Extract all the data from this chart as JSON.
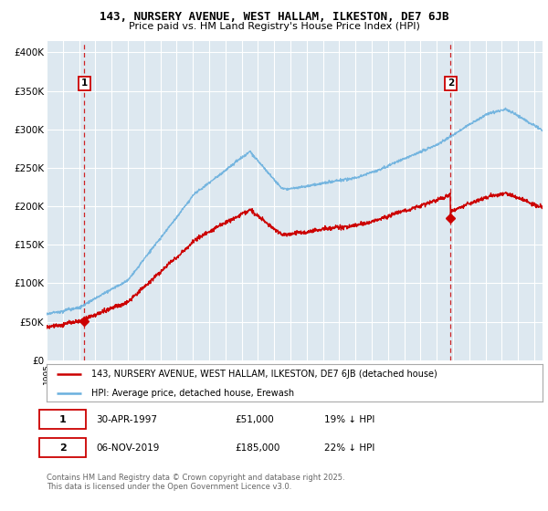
{
  "title": "143, NURSERY AVENUE, WEST HALLAM, ILKESTON, DE7 6JB",
  "subtitle": "Price paid vs. HM Land Registry's House Price Index (HPI)",
  "ylabel_ticks": [
    "£0",
    "£50K",
    "£100K",
    "£150K",
    "£200K",
    "£250K",
    "£300K",
    "£350K",
    "£400K"
  ],
  "ytick_values": [
    0,
    50000,
    100000,
    150000,
    200000,
    250000,
    300000,
    350000,
    400000
  ],
  "ylim": [
    0,
    415000
  ],
  "xlim_start": 1995.0,
  "xlim_end": 2025.5,
  "background_color": "#dde8f0",
  "grid_color": "#ffffff",
  "hpi_color": "#6ab0de",
  "price_color": "#cc0000",
  "vline_color": "#cc0000",
  "marker_color": "#cc0000",
  "purchase1_date": 1997.33,
  "purchase1_price": 51000,
  "purchase2_date": 2019.85,
  "purchase2_price": 185000,
  "legend_line1": "143, NURSERY AVENUE, WEST HALLAM, ILKESTON, DE7 6JB (detached house)",
  "legend_line2": "HPI: Average price, detached house, Erewash",
  "footnote_line1": "Contains HM Land Registry data © Crown copyright and database right 2025.",
  "footnote_line2": "This data is licensed under the Open Government Licence v3.0.",
  "table_row1": [
    "1",
    "30-APR-1997",
    "£51,000",
    "19% ↓ HPI"
  ],
  "table_row2": [
    "2",
    "06-NOV-2019",
    "£185,000",
    "22% ↓ HPI"
  ]
}
